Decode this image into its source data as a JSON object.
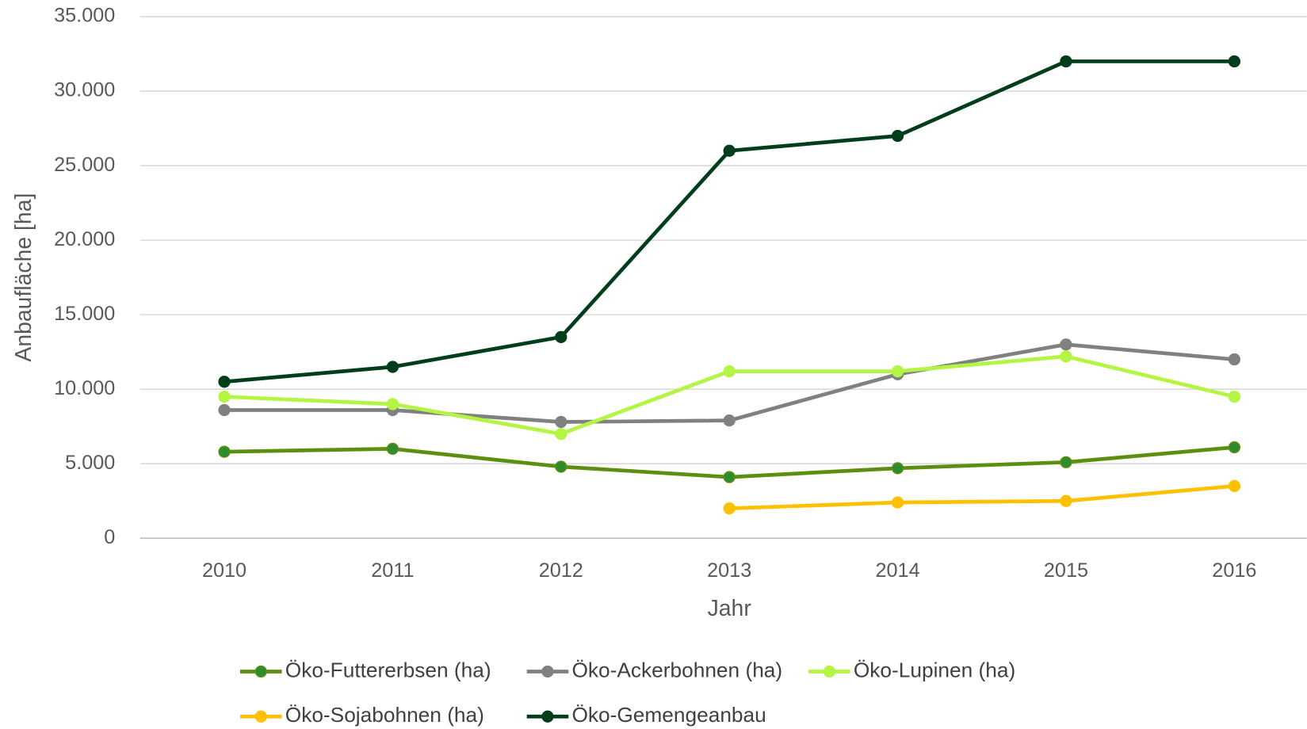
{
  "chart_data": {
    "type": "line",
    "x_label": "Jahr",
    "y_label": "Anbaufläche [ha]",
    "categories": [
      "2010",
      "2011",
      "2012",
      "2013",
      "2014",
      "2015",
      "2016"
    ],
    "series": [
      {
        "name": "Öko-Futtererbsen (ha)",
        "color": "#5a8f0f",
        "marker_color": "#2e8b2e",
        "values": [
          5800,
          6000,
          4800,
          4100,
          4700,
          5100,
          6100
        ]
      },
      {
        "name": "Öko-Ackerbohnen (ha)",
        "color": "#808080",
        "values": [
          8600,
          8600,
          7800,
          7900,
          11000,
          13000,
          12000
        ]
      },
      {
        "name": "Öko-Lupinen (ha)",
        "color": "#b3f542",
        "values": [
          9500,
          9000,
          7000,
          11200,
          11200,
          12200,
          9500
        ]
      },
      {
        "name": "Öko-Sojabohnen (ha)",
        "color": "#ffc000",
        "values": [
          null,
          null,
          null,
          2000,
          2400,
          2500,
          3500
        ]
      },
      {
        "name": "Öko-Gemengeanbau",
        "color": "#003d1a",
        "values": [
          10500,
          11500,
          13500,
          26000,
          27000,
          32000,
          32000
        ]
      }
    ],
    "ylim": [
      0,
      35000
    ],
    "yticks": [
      0,
      {
        "value": 5000,
        "label": "5.000"
      },
      {
        "value": 10000,
        "label": "10.000"
      },
      {
        "value": 15000,
        "label": "15.000"
      },
      {
        "value": 20000,
        "label": "20.000"
      },
      {
        "value": 25000,
        "label": "25.000"
      },
      {
        "value": 30000,
        "label": "30.000"
      },
      {
        "value": 35000,
        "label": "35.000"
      }
    ],
    "grid": true,
    "legend": "bottom"
  }
}
